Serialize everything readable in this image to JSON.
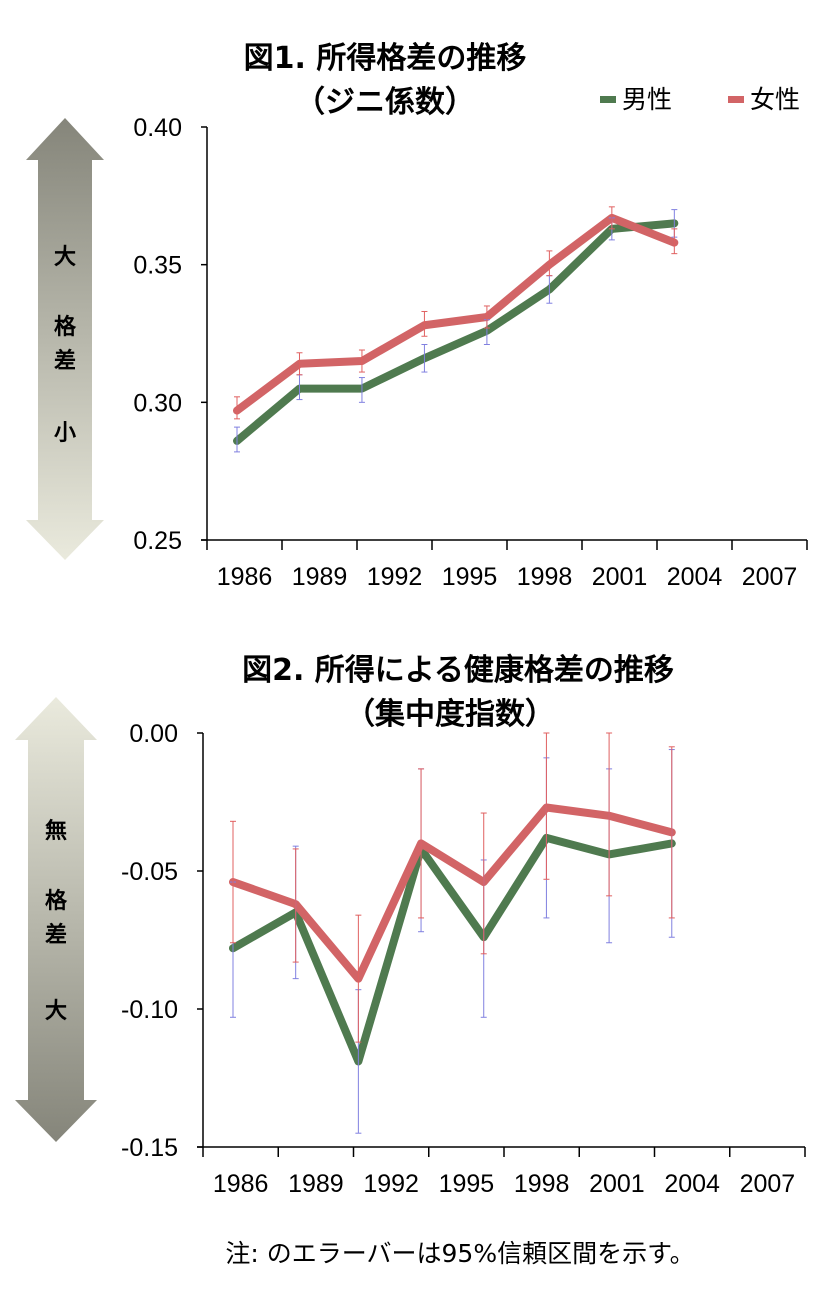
{
  "colors": {
    "male": "#4f7a4f",
    "female": "#d26466",
    "title": "#3d5c3d",
    "male_err": "#8080e0",
    "female_err": "#e06060"
  },
  "legend": {
    "male": "男性",
    "female": "女性"
  },
  "arrow1": {
    "top": "大",
    "mid1": "格",
    "mid2": "差",
    "bottom": "小"
  },
  "arrow2": {
    "top": "無",
    "mid1": "格",
    "mid2": "差",
    "bottom": "大"
  },
  "footnote": "注: のエラーバーは95%信頼区間を示す。",
  "chart_data": [
    {
      "type": "line",
      "title": "図1. 所得格差の推移",
      "subtitle": "（ジニ係数）",
      "xlabel": "",
      "ylabel": "",
      "categories": [
        "1986",
        "1989",
        "1992",
        "1995",
        "1998",
        "2001",
        "2004",
        "2007"
      ],
      "ylim": [
        0.25,
        0.4
      ],
      "yticks": [
        "0.40",
        "0.35",
        "0.30",
        "0.25"
      ],
      "ytick_values": [
        0.4,
        0.35,
        0.3,
        0.25
      ],
      "grid": false,
      "legend_position": "top-right",
      "series": [
        {
          "name": "男性",
          "values": [
            0.286,
            0.305,
            0.305,
            0.316,
            0.326,
            0.341,
            0.363,
            0.365
          ],
          "err_low": [
            0.282,
            0.301,
            0.3,
            0.311,
            0.321,
            0.336,
            0.359,
            0.36
          ],
          "err_high": [
            0.291,
            0.31,
            0.309,
            0.321,
            0.33,
            0.346,
            0.367,
            0.37
          ]
        },
        {
          "name": "女性",
          "values": [
            0.297,
            0.314,
            0.315,
            0.328,
            0.331,
            0.35,
            0.367,
            0.358
          ],
          "err_low": [
            0.294,
            0.31,
            0.311,
            0.324,
            0.327,
            0.346,
            0.363,
            0.354
          ],
          "err_high": [
            0.302,
            0.318,
            0.319,
            0.333,
            0.335,
            0.355,
            0.371,
            0.363
          ]
        }
      ]
    },
    {
      "type": "line",
      "title": "図2. 所得による健康格差の推移",
      "subtitle": "（集中度指数）",
      "xlabel": "",
      "ylabel": "",
      "categories": [
        "1986",
        "1989",
        "1992",
        "1995",
        "1998",
        "2001",
        "2004",
        "2007"
      ],
      "ylim": [
        -0.15,
        0.0
      ],
      "yticks": [
        "0.00",
        "-0.05",
        "-0.10",
        "-0.15"
      ],
      "ytick_values": [
        0.0,
        -0.05,
        -0.1,
        -0.15
      ],
      "grid": false,
      "series": [
        {
          "name": "男性",
          "values": [
            -0.078,
            -0.065,
            -0.119,
            -0.042,
            -0.074,
            -0.038,
            -0.044,
            -0.04
          ],
          "err_low": [
            -0.103,
            -0.089,
            -0.145,
            -0.072,
            -0.103,
            -0.067,
            -0.076,
            -0.074
          ],
          "err_high": [
            -0.054,
            -0.041,
            -0.093,
            -0.013,
            -0.046,
            -0.009,
            -0.013,
            -0.006
          ]
        },
        {
          "name": "女性",
          "values": [
            -0.054,
            -0.062,
            -0.089,
            -0.04,
            -0.054,
            -0.027,
            -0.03,
            -0.036
          ],
          "err_low": [
            -0.076,
            -0.083,
            -0.112,
            -0.067,
            -0.08,
            -0.053,
            -0.059,
            -0.067
          ],
          "err_high": [
            -0.032,
            -0.042,
            -0.066,
            -0.013,
            -0.029,
            0.0,
            0.0,
            -0.005
          ]
        }
      ]
    }
  ]
}
